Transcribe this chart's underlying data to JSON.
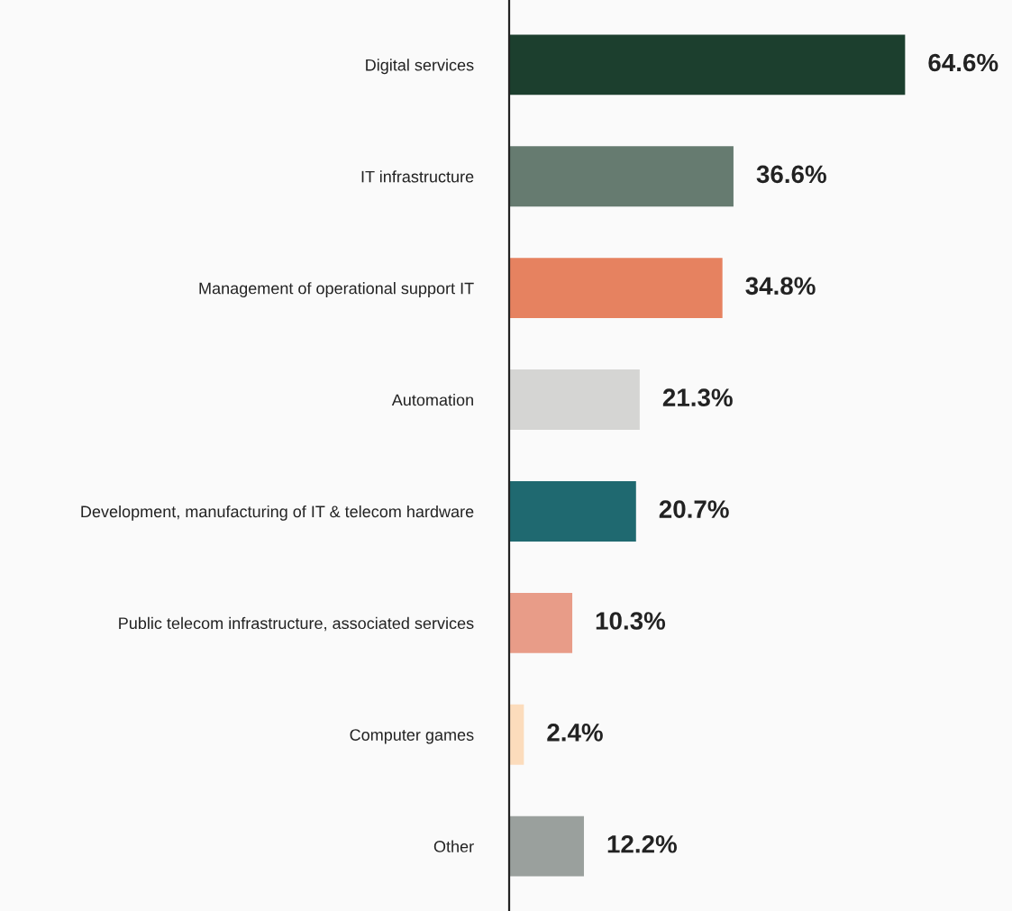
{
  "chart_data": {
    "type": "bar",
    "orientation": "horizontal",
    "data_labels": true,
    "grid": false,
    "legend": false,
    "categories": [
      "Digital services",
      "IT infrastructure",
      "Management of operational support IT",
      "Automation",
      "Development, manufacturing of IT & telecom hardware",
      "Public telecom infrastructure, associated services",
      "Computer games",
      "Other"
    ],
    "values": [
      64.6,
      36.6,
      34.8,
      21.3,
      20.7,
      10.3,
      2.4,
      12.2
    ],
    "value_labels": [
      "64.6%",
      "36.6%",
      "34.8%",
      "21.3%",
      "20.7%",
      "10.3%",
      "2.4%",
      "12.2%"
    ],
    "colors": [
      "#1c3f2e",
      "#667b70",
      "#e68260",
      "#d5d5d3",
      "#1f6970",
      "#e89c88",
      "#fcdcbc",
      "#9aa09d"
    ]
  }
}
